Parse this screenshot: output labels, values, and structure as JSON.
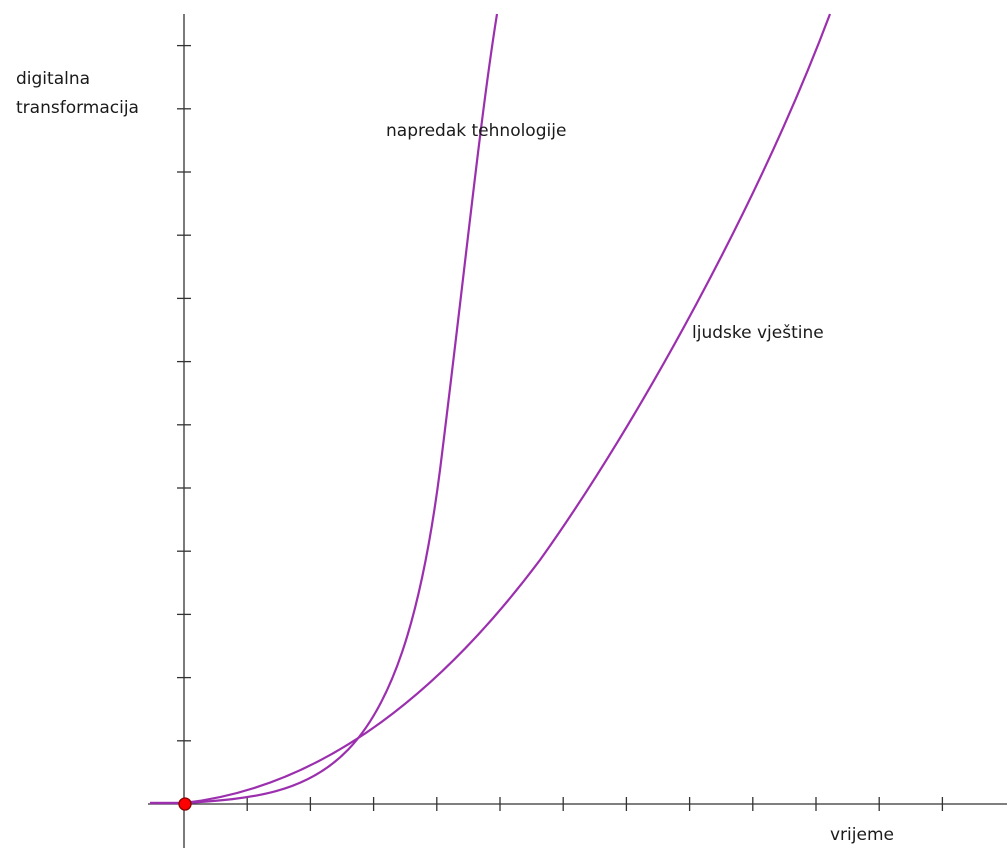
{
  "axes": {
    "y_label_line1": "digitalna",
    "y_label_line2": "transformacija",
    "x_label": "vrijeme"
  },
  "curves": {
    "tech_label": "napredak tehnologije",
    "skills_label": "ljudske vještine",
    "color": "#9b2fae"
  },
  "origin_point": {
    "color": "#ff0000",
    "stroke": "#8b0000"
  }
}
